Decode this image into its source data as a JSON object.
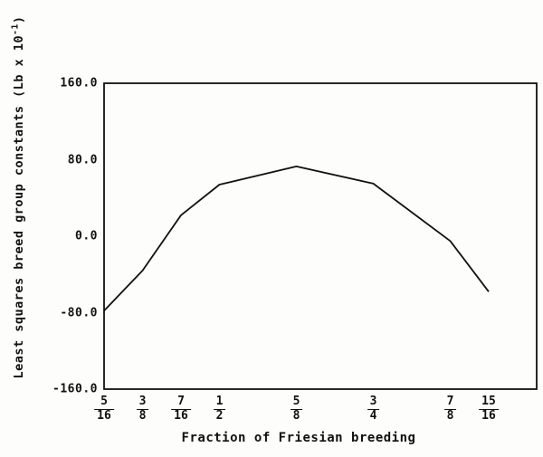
{
  "chart_data": {
    "type": "line",
    "title": "",
    "xlabel": "Fraction of Friesian breeding",
    "ylabel": "Least squares breed group constants (Lb x 10⁻¹)",
    "ylabel_parts": {
      "prefix": "Least squares breed group constants (Lb x 10",
      "sup": "-1",
      "suffix": ")"
    },
    "x": [
      0.3125,
      0.375,
      0.4375,
      0.5,
      0.625,
      0.75,
      0.875,
      0.9375
    ],
    "x_tick_labels": [
      {
        "num": "5",
        "den": "16"
      },
      {
        "num": "3",
        "den": "8"
      },
      {
        "num": "7",
        "den": "16"
      },
      {
        "num": "1",
        "den": "2"
      },
      {
        "num": "5",
        "den": "8"
      },
      {
        "num": "3",
        "den": "4"
      },
      {
        "num": "7",
        "den": "8"
      },
      {
        "num": "15",
        "den": "16"
      }
    ],
    "series": [
      {
        "name": "Least squares breed group constants",
        "values": [
          -78,
          -36,
          22,
          54,
          73,
          55,
          -5,
          -58
        ]
      }
    ],
    "yticks": [
      {
        "value": 160,
        "label": "160.0"
      },
      {
        "value": 80,
        "label": "80.0"
      },
      {
        "value": 0,
        "label": "0.0"
      },
      {
        "value": -80,
        "label": "-80.0"
      },
      {
        "value": -160,
        "label": "-160.0"
      }
    ],
    "ylim": [
      -160,
      160
    ],
    "xlim": [
      0.3125,
      0.9375
    ],
    "grid": false,
    "legend": null,
    "line_color": "#111111",
    "background_color": "#fdfdfb"
  }
}
